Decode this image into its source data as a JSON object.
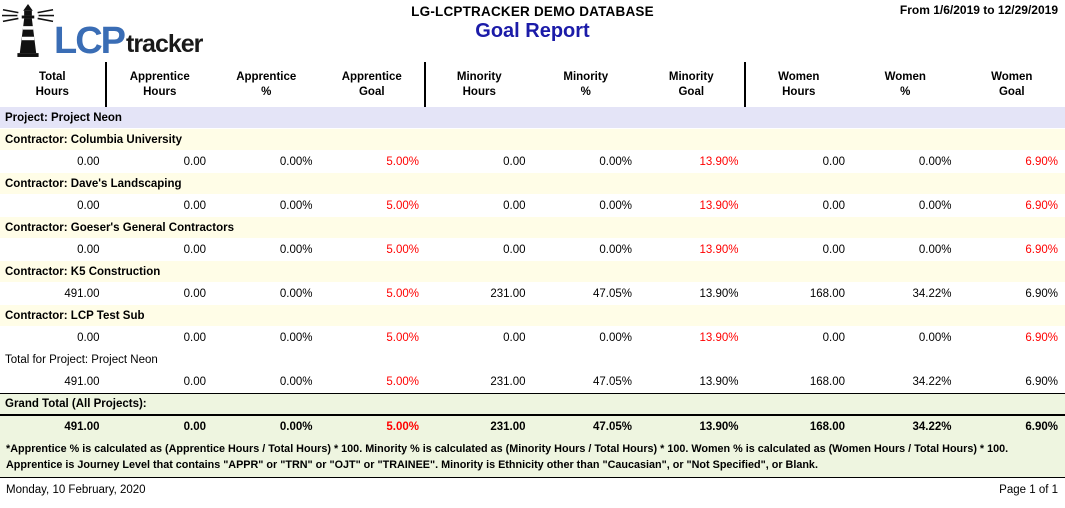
{
  "brand": {
    "lcp": "LCP",
    "tracker": "tracker"
  },
  "header": {
    "database": "LG-LCPTRACKER DEMO DATABASE",
    "report_title": "Goal Report",
    "date_range": "From 1/6/2019 to 12/29/2019"
  },
  "columns": [
    {
      "line1": "Total",
      "line2": "Hours"
    },
    {
      "line1": "Apprentice",
      "line2": "Hours"
    },
    {
      "line1": "Apprentice",
      "line2": "%"
    },
    {
      "line1": "Apprentice",
      "line2": "Goal"
    },
    {
      "line1": "Minority",
      "line2": "Hours"
    },
    {
      "line1": "Minority",
      "line2": "%"
    },
    {
      "line1": "Minority",
      "line2": "Goal"
    },
    {
      "line1": "Women",
      "line2": "Hours"
    },
    {
      "line1": "Women",
      "line2": "%"
    },
    {
      "line1": "Women",
      "line2": "Goal"
    }
  ],
  "rows": [
    {
      "type": "project",
      "label": "Project: Project Neon"
    },
    {
      "type": "contractor",
      "label": "Contractor: Columbia University"
    },
    {
      "type": "values",
      "values": [
        "0.00",
        "0.00",
        "0.00%",
        "5.00%",
        "0.00",
        "0.00%",
        "13.90%",
        "0.00",
        "0.00%",
        "6.90%"
      ],
      "red": [
        3,
        6,
        9
      ]
    },
    {
      "type": "contractor",
      "label": "Contractor: Dave's Landscaping"
    },
    {
      "type": "values",
      "values": [
        "0.00",
        "0.00",
        "0.00%",
        "5.00%",
        "0.00",
        "0.00%",
        "13.90%",
        "0.00",
        "0.00%",
        "6.90%"
      ],
      "red": [
        3,
        6,
        9
      ]
    },
    {
      "type": "contractor",
      "label": "Contractor: Goeser's General Contractors"
    },
    {
      "type": "values",
      "values": [
        "0.00",
        "0.00",
        "0.00%",
        "5.00%",
        "0.00",
        "0.00%",
        "13.90%",
        "0.00",
        "0.00%",
        "6.90%"
      ],
      "red": [
        3,
        6,
        9
      ]
    },
    {
      "type": "contractor",
      "label": "Contractor: K5 Construction"
    },
    {
      "type": "values",
      "values": [
        "491.00",
        "0.00",
        "0.00%",
        "5.00%",
        "231.00",
        "47.05%",
        "13.90%",
        "168.00",
        "34.22%",
        "6.90%"
      ],
      "red": [
        3
      ]
    },
    {
      "type": "contractor",
      "label": "Contractor: LCP Test Sub"
    },
    {
      "type": "values",
      "values": [
        "0.00",
        "0.00",
        "0.00%",
        "5.00%",
        "0.00",
        "0.00%",
        "13.90%",
        "0.00",
        "0.00%",
        "6.90%"
      ],
      "red": [
        3,
        6,
        9
      ]
    },
    {
      "type": "project_total",
      "label": "Total for Project: Project Neon"
    },
    {
      "type": "values",
      "values": [
        "491.00",
        "0.00",
        "0.00%",
        "5.00%",
        "231.00",
        "47.05%",
        "13.90%",
        "168.00",
        "34.22%",
        "6.90%"
      ],
      "red": [
        3
      ]
    }
  ],
  "grand_total": {
    "label": "Grand Total (All Projects):",
    "values": [
      "491.00",
      "0.00",
      "0.00%",
      "5.00%",
      "231.00",
      "47.05%",
      "13.90%",
      "168.00",
      "34.22%",
      "6.90%"
    ],
    "red": [
      3
    ]
  },
  "footnote": {
    "line1": "*Apprentice % is calculated as (Apprentice Hours / Total Hours) * 100. Minority % is calculated as (Minority Hours / Total Hours) * 100. Women % is calculated as (Women Hours / Total Hours) * 100.",
    "line2": "Apprentice is Journey Level that contains \"APPR\" or \"TRN\" or \"OJT\" or \"TRAINEE\". Minority is Ethnicity other than \"Caucasian\", or \"Not Specified\", or Blank."
  },
  "footer": {
    "date": "Monday, 10 February, 2020",
    "page": "Page 1 of 1"
  },
  "colors": {
    "project_band": "#E4E4F7",
    "contractor_band": "#FFFDE7",
    "grand_band": "#EEF5E0",
    "goal_red": "#FF0000",
    "title_navy": "#1B1BA8",
    "lcp_blue": "#3A6DB5"
  }
}
